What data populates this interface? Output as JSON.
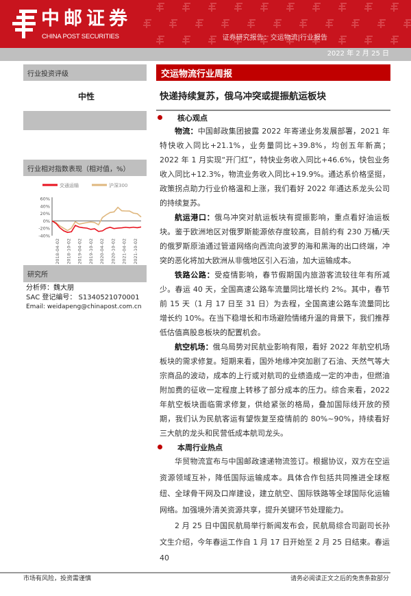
{
  "header": {
    "brand_cn": "中邮证券",
    "brand_en": "CHINA POST SECURITIES",
    "report_type": "证券研究报告：交运物流|行业报告",
    "date": "2022 年 2 月 25 日"
  },
  "sidebar": {
    "rating_label": "行业投资评级",
    "rating_value": "中性",
    "chart_box_label": "行业相对指数表现（相对值，%）",
    "institute_label": "研究所",
    "analyst": "分析师：魏大朋",
    "sac": "SAC 登记编号：  S1340521070001",
    "email": "Email:  weidapeng@chinapost.com.cn"
  },
  "main": {
    "title": "交运物流行业周报",
    "subtitle": "快递持续复苏，俄乌冲突或提振航运板块",
    "sections": [
      {
        "heading": "核心观点",
        "paragraphs": [
          {
            "lead": "物流：",
            "text": "中国邮政集团披露 2022 年寄递业务发展部署，2021 年特快收入同比+21.1%，业务量同比+39.8%，均创五年新高；2022 年 1 月实现“开门红”，特快业务收入同比+46.6%，快包业务收入同比+12.3%，物流业务收入同比+19.9%。通达系价格坚挺，政策拐点助力行业价格温和上涨，我们看好 2022 年通达系龙头公司的持续复苏。"
          },
          {
            "lead": "航运港口：",
            "text": "俄乌冲突对航运板块有提振影响，重点看好油运板块。鉴于欧洲地区对俄罗斯能源依存度较高，目前约有 230 万桶/天的俄罗斯原油通过管道网络向西流向波罗的海和黑海的出口终端，冲突的恶化将加大欧洲从非俄地区引入石油，加大运输成本。"
          },
          {
            "lead": "铁路公路：",
            "text": "受疫情影响，春节假期国内旅游客流较往年有所减少。春运 40 天，全国高速公路车流量同比增长约 2%。其中，春节前 15 天（1 月 17 日至 31 日）为去程，全国高速公路车流量同比增长约 10%。在当下稳增长和市场避险情绪升温的背景下，我们推荐低估值高股息板块的配置机会。"
          },
          {
            "lead": "航空机场：",
            "text": "俄乌局势对民航业影响有限，看好 2022 年航空机场板块的需求修复。短期来看，国外地缘冲突加剧了石油、天然气等大宗商品的波动，成本的上行或对航司的业绩造成一定的冲击，但燃油附加费的征收一定程度上转移了部分成本的压力。综合来看，2022 年航空板块面临需求修复，供给紧张的格局，叠加国际线开放的预期，我们认为民航客运有望恢复至疫情前的 80%~90%，持续看好三大航的龙头和民营低成本航司龙头。"
          }
        ]
      },
      {
        "heading": "本周行业热点",
        "paragraphs": [
          {
            "lead": "",
            "text": "华贸物流宣布与中国邮政速递物流签订。根据协议，双方在空运资源领域互补，降低国际运输成本。具体合作包括共同推进全球枢纽、全球骨干网及口岸建设，建立航空、国际铁路等全球国际化运输网络。加强境外清关资源共享，提升关键环节处理能力。"
          },
          {
            "lead": "",
            "text": "2 月 25 日中国民航局举行新闻发布会，民航局综合司副司长孙文生介绍，今年春运工作自 1 月 17 日开始至 2 月 25 日结束。春运 40"
          }
        ]
      }
    ]
  },
  "footer": {
    "left": "市场有风险，投资需谨慎",
    "right": "请务必阅读正文之后的免责条款部分"
  },
  "colors": {
    "brand_red": "#c8141e",
    "title_red": "#c00000",
    "gray": "#bfbfbf",
    "series_red": "#e8131f",
    "series_tan": "#dfb77e"
  },
  "chart_data": {
    "type": "line",
    "legend_position": "top",
    "ylim": [
      -40,
      60
    ],
    "yticks": [
      "60%",
      "40%",
      "20%",
      "0%",
      "-20%",
      "-40%"
    ],
    "xticks": [
      "2018-04-02",
      "2018-10-02",
      "2019-04-02",
      "2019-10-02",
      "2020-04-02",
      "2020-10-02",
      "2021-04-02",
      "2021-10-02"
    ],
    "x": [
      "2018-04",
      "2018-06",
      "2018-08",
      "2018-10",
      "2018-12",
      "2019-02",
      "2019-04",
      "2019-06",
      "2019-08",
      "2019-10",
      "2019-12",
      "2020-02",
      "2020-04",
      "2020-06",
      "2020-08",
      "2020-10",
      "2020-12",
      "2021-02",
      "2021-04",
      "2021-06",
      "2021-08",
      "2021-10",
      "2021-12",
      "2022-02"
    ],
    "series": [
      {
        "name": "交通运输",
        "color": "#e8131f",
        "values": [
          0,
          -8,
          -20,
          -27,
          -30,
          -28,
          -12,
          -18,
          -20,
          -20,
          -22,
          -20,
          -28,
          -28,
          -22,
          -18,
          -20,
          -18,
          -18,
          -18,
          -20,
          -18,
          -18,
          -15
        ]
      },
      {
        "name": "沪深300",
        "color": "#dfb77e",
        "values": [
          0,
          -6,
          -15,
          -20,
          -25,
          -18,
          -2,
          -10,
          -8,
          -5,
          -2,
          -3,
          -10,
          8,
          15,
          22,
          25,
          38,
          28,
          26,
          25,
          20,
          20,
          12
        ]
      }
    ]
  }
}
